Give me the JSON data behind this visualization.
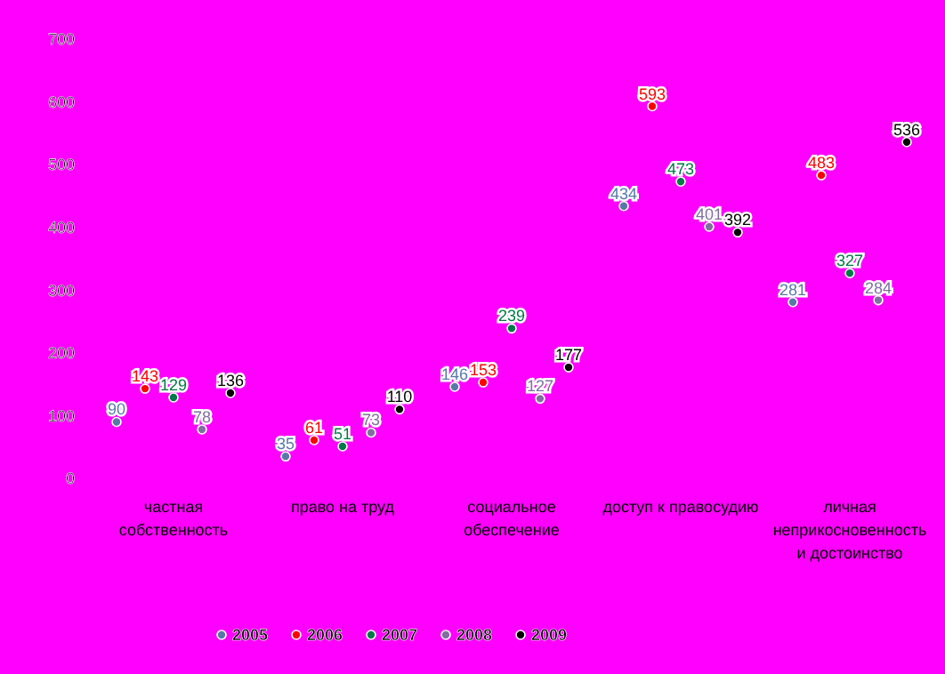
{
  "chart_data": {
    "type": "scatter",
    "categories": [
      "частная собственность",
      "право на труд",
      "социальное обеспечение",
      "доступ к правосудию",
      "личная неприкосновенность и достоинство"
    ],
    "series": [
      {
        "name": "2005",
        "color": "#5878a8",
        "values": [
          90,
          35,
          146,
          434,
          281
        ]
      },
      {
        "name": "2006",
        "color": "#ff0000",
        "values": [
          143,
          61,
          153,
          593,
          483
        ]
      },
      {
        "name": "2007",
        "color": "#007a48",
        "values": [
          129,
          51,
          239,
          473,
          327
        ]
      },
      {
        "name": "2008",
        "color": "#8070a0",
        "values": [
          78,
          73,
          127,
          401,
          284
        ]
      },
      {
        "name": "2009",
        "color": "#000000",
        "values": [
          136,
          110,
          177,
          392,
          536
        ]
      }
    ],
    "ylim": [
      0,
      700
    ],
    "yticks": [
      0,
      100,
      200,
      300,
      400,
      500,
      600,
      700
    ],
    "grid": false,
    "legend": "bottom",
    "marker": "circle",
    "data_labels": true
  }
}
